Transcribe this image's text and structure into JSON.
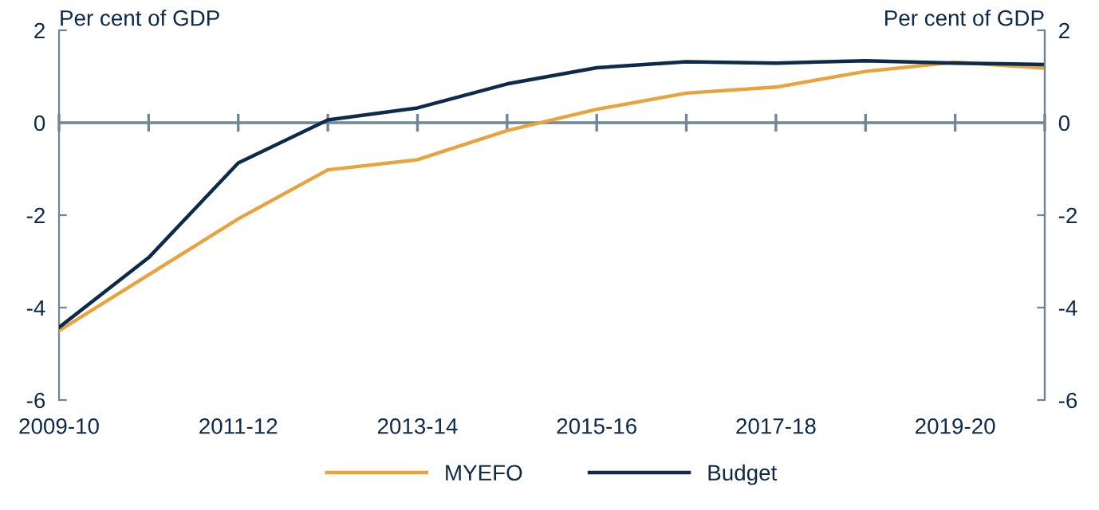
{
  "chart_data": {
    "type": "line",
    "ylabel": "Per cent of GDP",
    "y2label": "Per cent of GDP",
    "categories": [
      "2009-10",
      null,
      "2011-12",
      null,
      "2013-14",
      null,
      "2015-16",
      null,
      "2017-18",
      null,
      "2019-20",
      null
    ],
    "series": [
      {
        "name": "MYEFO",
        "color": "#e8a33d",
        "values": [
          -4.5,
          -3.29,
          -2.08,
          -1.02,
          -0.8,
          -0.17,
          0.29,
          0.64,
          0.77,
          1.11,
          1.31,
          1.18
        ]
      },
      {
        "name": "Budget",
        "color": "#0d2a4a",
        "values": [
          -4.43,
          -2.92,
          -0.87,
          0.06,
          0.32,
          0.84,
          1.19,
          1.32,
          1.29,
          1.34,
          1.29,
          1.26
        ]
      }
    ],
    "ylim": [
      -6,
      2
    ],
    "yticks": [
      -6,
      -4,
      -2,
      0,
      2
    ],
    "y2lim": [
      -6,
      2
    ],
    "y2ticks": [
      -6,
      -4,
      -2,
      0,
      2
    ],
    "ref_lines": [
      {
        "axis": "y",
        "value": 0,
        "color": "#6d8699"
      }
    ],
    "grid": false,
    "legend": "bottom",
    "marker": "none",
    "line_style": "solid"
  }
}
